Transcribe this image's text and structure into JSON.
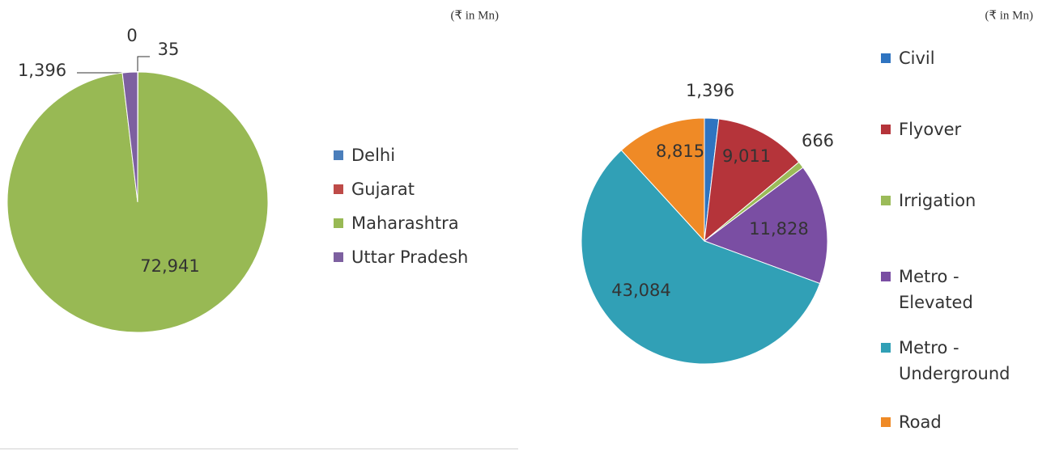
{
  "chart_data": [
    {
      "type": "pie",
      "subtitle": "(₹ in Mn)",
      "categories": [
        "Delhi",
        "Gujarat",
        "Maharashtra",
        "Uttar Pradesh"
      ],
      "values": [
        0,
        35,
        72941,
        1396
      ],
      "value_labels": [
        "0",
        "35",
        "72,941",
        "1,396"
      ],
      "colors": [
        "#4a7ebb",
        "#be4b48",
        "#98b954",
        "#7d60a0"
      ]
    },
    {
      "type": "pie",
      "subtitle": "(₹ in Mn)",
      "categories": [
        "Civil",
        "Flyover",
        "Irrigation",
        "Metro - Elevated",
        "Metro - Underground",
        "Road"
      ],
      "values": [
        1396,
        9011,
        666,
        11828,
        43084,
        8815
      ],
      "value_labels": [
        "1,396",
        "9,011",
        "666",
        "11,828",
        "43,084",
        "8,815"
      ],
      "colors": [
        "#2f74c0",
        "#b5343a",
        "#9bbb59",
        "#7a4ea3",
        "#31a0b6",
        "#ef8a26"
      ]
    }
  ]
}
